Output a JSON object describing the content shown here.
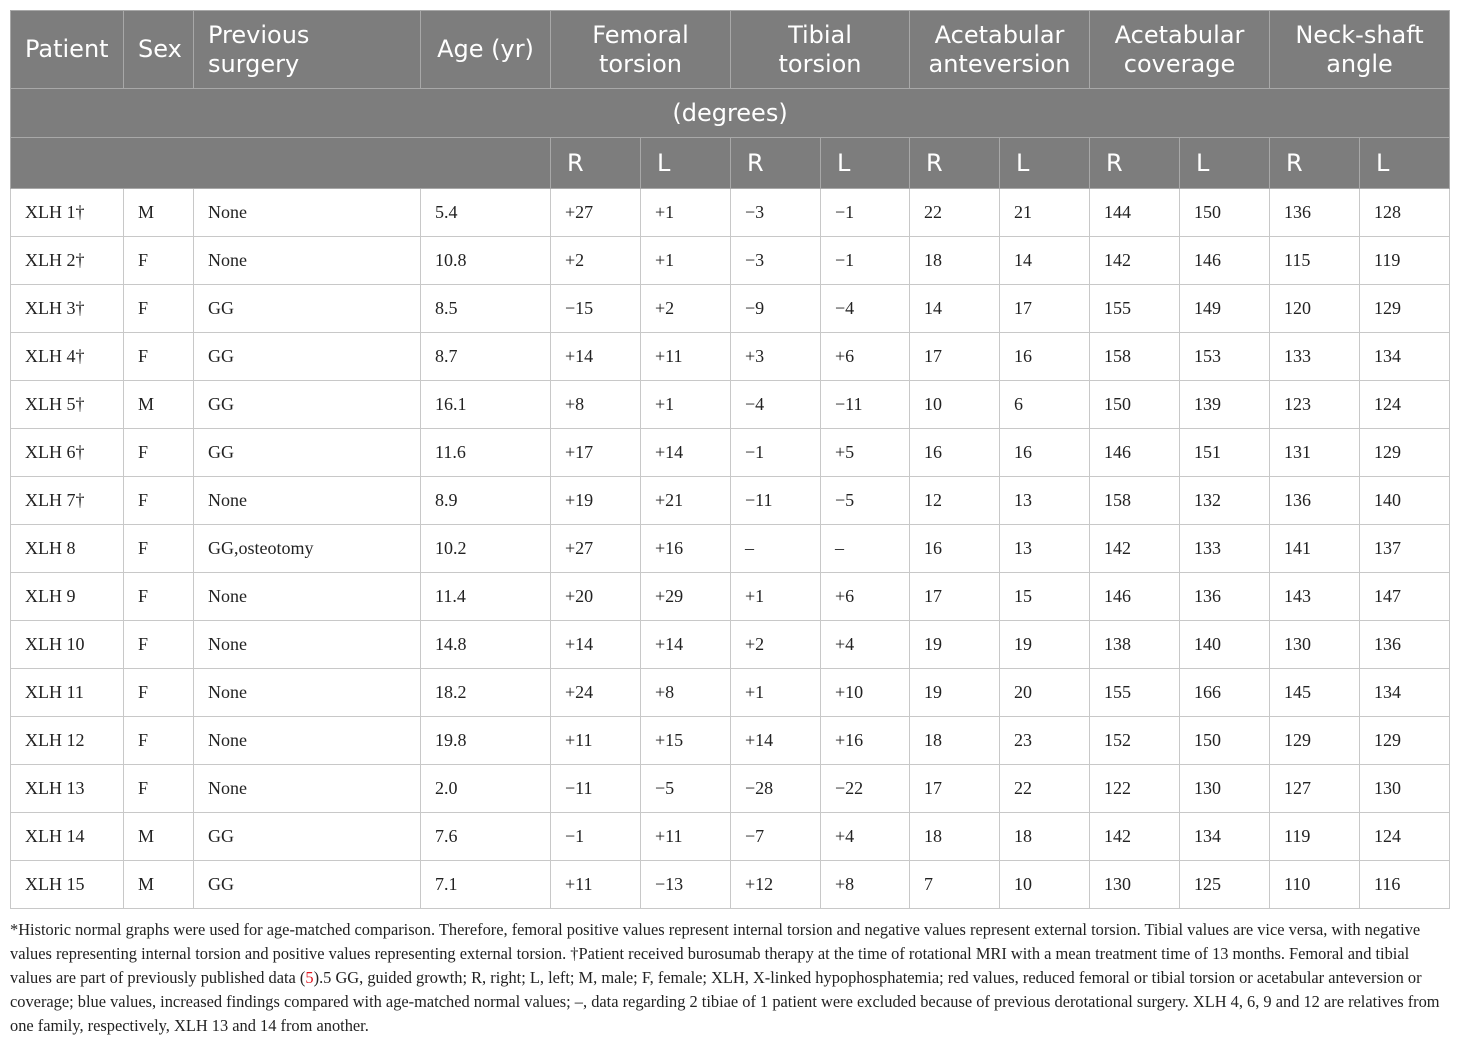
{
  "table": {
    "headers": {
      "patient": "Patient",
      "sex": "Sex",
      "previous_surgery": "Previous surgery",
      "age": "Age (yr)",
      "femoral_torsion": "Femoral torsion",
      "tibial_torsion": "Tibial torsion",
      "acetabular_anteversion": "Acetabular anteversion",
      "acetabular_coverage": "Acetabular coverage",
      "neck_shaft_angle": "Neck-shaft angle"
    },
    "units_row": "(degrees)",
    "side_labels": [
      "R",
      "L",
      "R",
      "L",
      "R",
      "L",
      "R",
      "L",
      "R",
      "L"
    ],
    "colors": {
      "reduced": "#e0141e",
      "increased": "#1a1ad0",
      "normal": "#222222",
      "header_bg": "#7d7d7d"
    },
    "rows": [
      {
        "patient": "XLH 1†",
        "sex": "M",
        "surgery": "None",
        "age": "5.4",
        "values": [
          [
            "+27",
            "k"
          ],
          [
            "+1",
            "r"
          ],
          [
            "−3",
            "k"
          ],
          [
            "−1",
            "k"
          ],
          [
            "22",
            "b"
          ],
          [
            "21",
            "b"
          ],
          [
            "144",
            "b"
          ],
          [
            "150",
            "b"
          ],
          [
            "136",
            "k"
          ],
          [
            "128",
            "k"
          ]
        ]
      },
      {
        "patient": "XLH 2†",
        "sex": "F",
        "surgery": "None",
        "age": "10.8",
        "values": [
          [
            "+2",
            "r"
          ],
          [
            "+1",
            "r"
          ],
          [
            "−3",
            "r"
          ],
          [
            "−1",
            "r"
          ],
          [
            "18",
            "b"
          ],
          [
            "14",
            "k"
          ],
          [
            "142",
            "k"
          ],
          [
            "146",
            "k"
          ],
          [
            "115",
            "r"
          ],
          [
            "119",
            "r"
          ]
        ]
      },
      {
        "patient": "XLH 3†",
        "sex": "F",
        "surgery": "GG",
        "age": "8.5",
        "values": [
          [
            "−15",
            "r"
          ],
          [
            "+2",
            "r"
          ],
          [
            "−9",
            "r"
          ],
          [
            "−4",
            "r"
          ],
          [
            "14",
            "k"
          ],
          [
            "17",
            "b"
          ],
          [
            "155",
            "b"
          ],
          [
            "149",
            "b"
          ],
          [
            "120",
            "r"
          ],
          [
            "129",
            "k"
          ]
        ]
      },
      {
        "patient": "XLH 4†",
        "sex": "F",
        "surgery": "GG",
        "age": "8.7",
        "values": [
          [
            "+14",
            "r"
          ],
          [
            "+11",
            "r"
          ],
          [
            "+3",
            "r"
          ],
          [
            "+6",
            "r"
          ],
          [
            "17",
            "b"
          ],
          [
            "16",
            "b"
          ],
          [
            "158",
            "b"
          ],
          [
            "153",
            "b"
          ],
          [
            "133",
            "k"
          ],
          [
            "134",
            "k"
          ]
        ]
      },
      {
        "patient": "XLH 5†",
        "sex": "M",
        "surgery": "GG",
        "age": "16.1",
        "values": [
          [
            "+8",
            "k"
          ],
          [
            "+1",
            "r"
          ],
          [
            "−4",
            "r"
          ],
          [
            "−11",
            "r"
          ],
          [
            "10",
            "r"
          ],
          [
            "6",
            "r"
          ],
          [
            "150",
            "b"
          ],
          [
            "139",
            "r"
          ],
          [
            "123",
            "r"
          ],
          [
            "124",
            "r"
          ]
        ]
      },
      {
        "patient": "XLH 6†",
        "sex": "F",
        "surgery": "GG",
        "age": "11.6",
        "values": [
          [
            "+17",
            "k"
          ],
          [
            "+14",
            "k"
          ],
          [
            "−1",
            "r"
          ],
          [
            "+5",
            "r"
          ],
          [
            "16",
            "k"
          ],
          [
            "16",
            "k"
          ],
          [
            "146",
            "k"
          ],
          [
            "151",
            "k"
          ],
          [
            "131",
            "k"
          ],
          [
            "129",
            "k"
          ]
        ]
      },
      {
        "patient": "XLH 7†",
        "sex": "F",
        "surgery": "None",
        "age": "8.9",
        "values": [
          [
            "+19",
            "k"
          ],
          [
            "+21",
            "k"
          ],
          [
            "−11",
            "r"
          ],
          [
            "−5",
            "r"
          ],
          [
            "12",
            "k"
          ],
          [
            "13",
            "k"
          ],
          [
            "158",
            "b"
          ],
          [
            "132",
            "r"
          ],
          [
            "136",
            "k"
          ],
          [
            "140",
            "k"
          ]
        ]
      },
      {
        "patient": "XLH 8",
        "sex": "F",
        "surgery": "GG,osteotomy",
        "age": "10.2",
        "values": [
          [
            "+27",
            "b"
          ],
          [
            "+16",
            "k"
          ],
          [
            "–",
            "k"
          ],
          [
            "–",
            "k"
          ],
          [
            "16",
            "k"
          ],
          [
            "13",
            "k"
          ],
          [
            "142",
            "k"
          ],
          [
            "133",
            "r"
          ],
          [
            "141",
            "b"
          ],
          [
            "137",
            "k"
          ]
        ]
      },
      {
        "patient": "XLH 9",
        "sex": "F",
        "surgery": "None",
        "age": "11.4",
        "values": [
          [
            "+20",
            "k"
          ],
          [
            "+29",
            "b"
          ],
          [
            "+1",
            "r"
          ],
          [
            "+6",
            "r"
          ],
          [
            "17",
            "b"
          ],
          [
            "15",
            "k"
          ],
          [
            "146",
            "k"
          ],
          [
            "136",
            "r"
          ],
          [
            "143",
            "k"
          ],
          [
            "147",
            "b"
          ]
        ]
      },
      {
        "patient": "XLH 10",
        "sex": "F",
        "surgery": "None",
        "age": "14.8",
        "values": [
          [
            "+14",
            "k"
          ],
          [
            "+14",
            "k"
          ],
          [
            "+2",
            "r"
          ],
          [
            "+4",
            "r"
          ],
          [
            "19",
            "b"
          ],
          [
            "19",
            "b"
          ],
          [
            "138",
            "r"
          ],
          [
            "140",
            "k"
          ],
          [
            "130",
            "r"
          ],
          [
            "136",
            "r"
          ]
        ]
      },
      {
        "patient": "XLH 11",
        "sex": "F",
        "surgery": "None",
        "age": "18.2",
        "values": [
          [
            "+24",
            "b"
          ],
          [
            "+8",
            "k"
          ],
          [
            "+1",
            "r"
          ],
          [
            "+10",
            "k"
          ],
          [
            "19",
            "b"
          ],
          [
            "20",
            "b"
          ],
          [
            "155",
            "b"
          ],
          [
            "166",
            "b"
          ],
          [
            "145",
            "b"
          ],
          [
            "134",
            "k"
          ]
        ]
      },
      {
        "patient": "XLH 12",
        "sex": "F",
        "surgery": "None",
        "age": "19.8",
        "values": [
          [
            "+11",
            "k"
          ],
          [
            "+15",
            "k"
          ],
          [
            "+14",
            "k"
          ],
          [
            "+16",
            "k"
          ],
          [
            "18",
            "k"
          ],
          [
            "23",
            "b"
          ],
          [
            "152",
            "b"
          ],
          [
            "150",
            "b"
          ],
          [
            "129",
            "k"
          ],
          [
            "129",
            "k"
          ]
        ]
      },
      {
        "patient": "XLH 13",
        "sex": "F",
        "surgery": "None",
        "age": "2.0",
        "values": [
          [
            "−11",
            "r"
          ],
          [
            "−5",
            "r"
          ],
          [
            "−28",
            "b"
          ],
          [
            "−22",
            "k"
          ],
          [
            "17",
            "b"
          ],
          [
            "22",
            "b"
          ],
          [
            "122",
            "k"
          ],
          [
            "130",
            "b"
          ],
          [
            "127",
            "r"
          ],
          [
            "130",
            "r"
          ]
        ]
      },
      {
        "patient": "XLH 14",
        "sex": "M",
        "surgery": "GG",
        "age": "7.6",
        "values": [
          [
            "−1",
            "r"
          ],
          [
            "+11",
            "r"
          ],
          [
            "−7",
            "r"
          ],
          [
            "+4",
            "k"
          ],
          [
            "18",
            "b"
          ],
          [
            "18",
            "b"
          ],
          [
            "142",
            "k"
          ],
          [
            "134",
            "k"
          ],
          [
            "119",
            "r"
          ],
          [
            "124",
            "r"
          ]
        ]
      },
      {
        "patient": "XLH 15",
        "sex": "M",
        "surgery": "GG",
        "age": "7.1",
        "values": [
          [
            "+11",
            "r"
          ],
          [
            "−13",
            "r"
          ],
          [
            "+12",
            "k"
          ],
          [
            "+8",
            "k"
          ],
          [
            "7",
            "r"
          ],
          [
            "10",
            "k"
          ],
          [
            "130",
            "r"
          ],
          [
            "125",
            "r"
          ],
          [
            "110",
            "r"
          ],
          [
            "116",
            "r"
          ]
        ]
      }
    ]
  },
  "footnote": {
    "text_before_ref": "*Historic normal graphs were used for age-matched comparison. Therefore, femoral positive values represent internal torsion and negative values represent external torsion. Tibial values are vice versa, with negative values representing internal torsion and positive values representing external torsion. †Patient received burosumab therapy at the time of rotational MRI with a mean treatment time of 13 months. Femoral and tibial values are part of previously published data (",
    "ref": "5",
    "text_after_ref": ").5 GG, guided growth; R, right; L, left; M, male; F, female; XLH, X-linked hypophosphatemia; red values, reduced femoral or tibial torsion or acetabular anteversion or coverage; blue values, increased findings compared with age-matched normal values; –, data regarding 2 tibiae of 1 patient were excluded because of previous derotational surgery. XLH 4, 6, 9 and 12 are relatives from one family, respectively, XLH 13 and 14 from another."
  }
}
